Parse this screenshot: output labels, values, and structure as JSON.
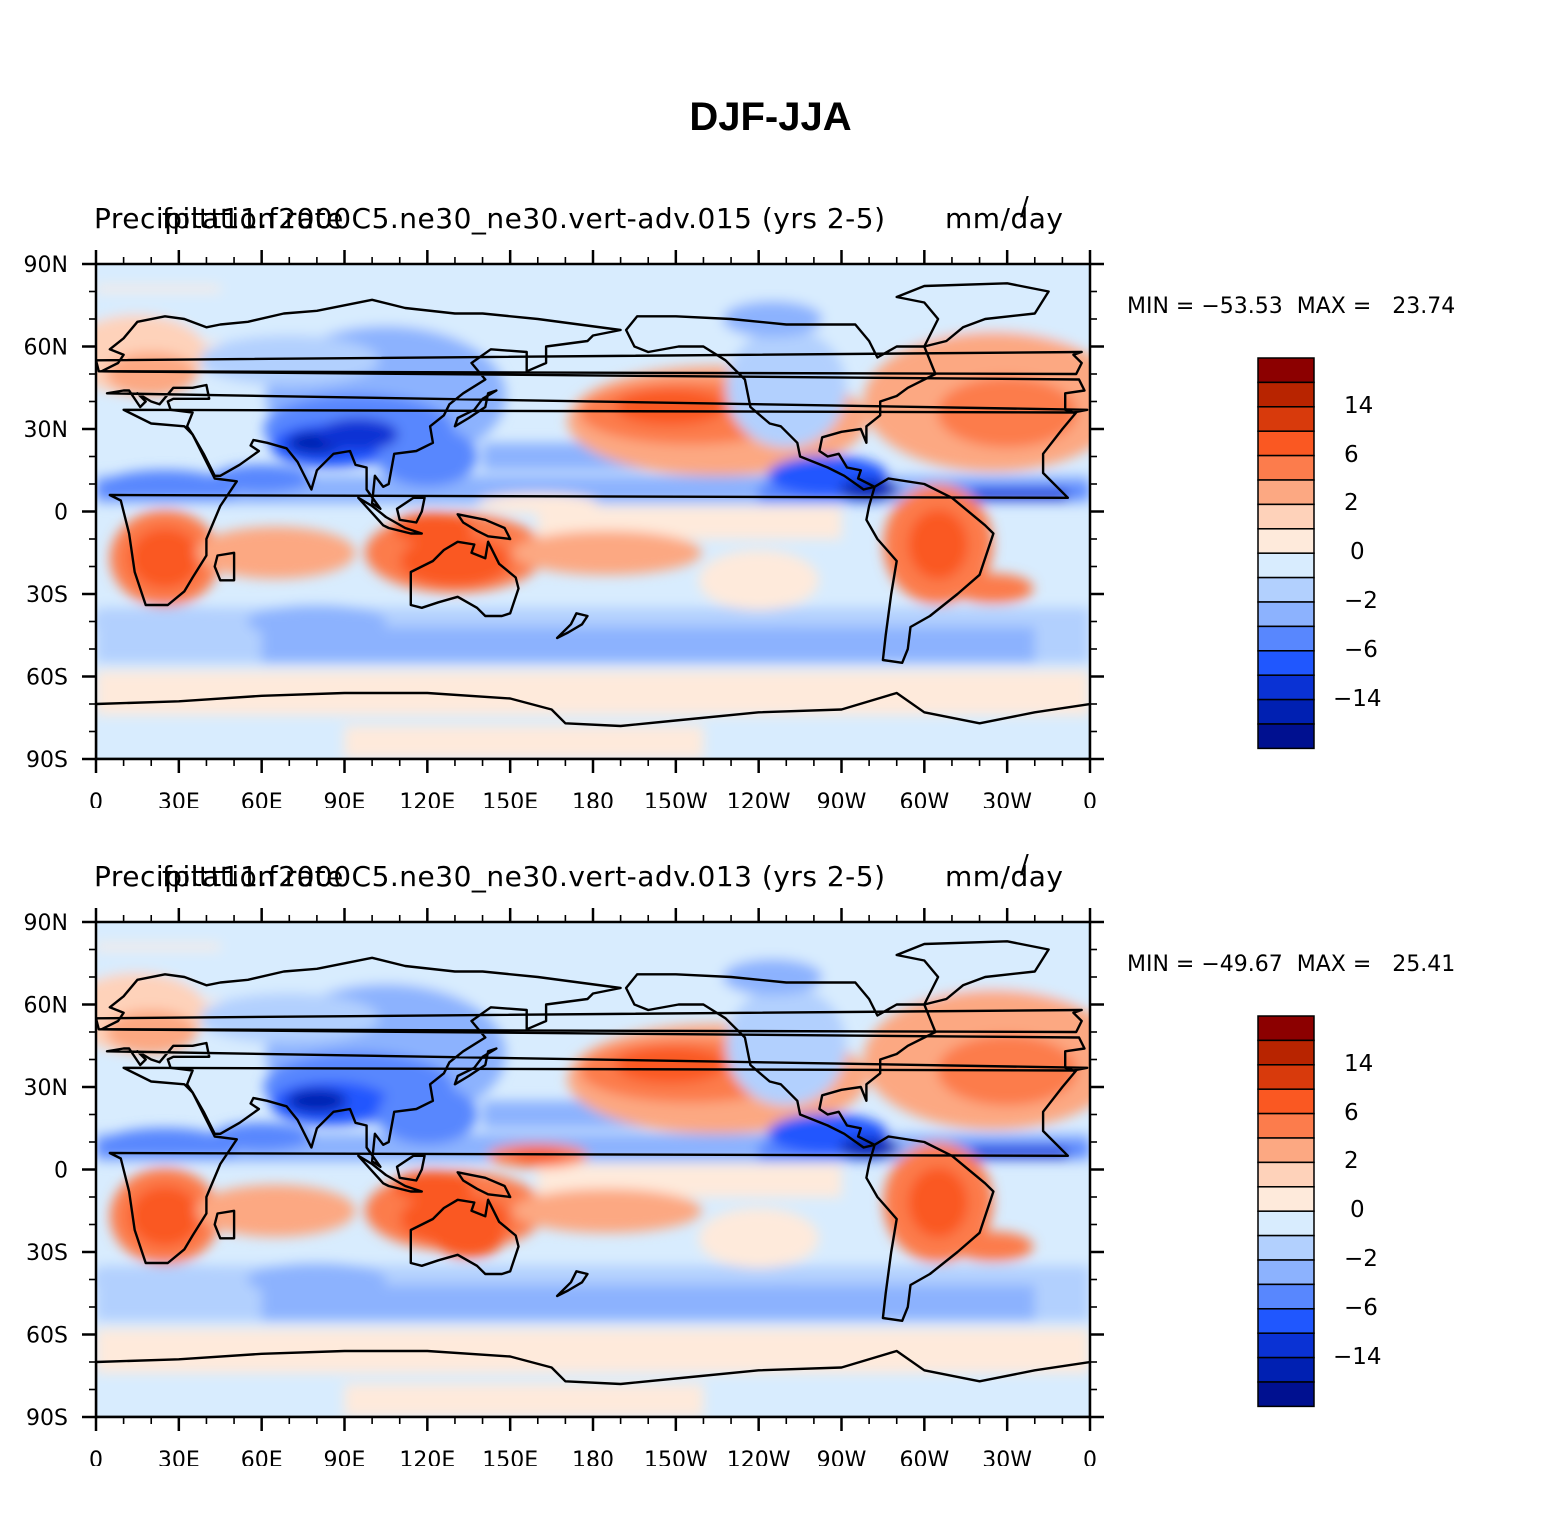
{
  "figure": {
    "title": "DJF-JJA"
  },
  "axes": {
    "lat_labels": [
      "90N",
      "60N",
      "30N",
      "0",
      "30S",
      "60S",
      "90S"
    ],
    "lon_labels": [
      "0",
      "30E",
      "60E",
      "90E",
      "120E",
      "150E",
      "180",
      "150W",
      "120W",
      "90W",
      "60W",
      "30W",
      "0"
    ]
  },
  "colorbar": {
    "colors": [
      "#8c0000",
      "#b82400",
      "#d83a0c",
      "#fa5822",
      "#fc7c4c",
      "#fca882",
      "#fed2ba",
      "#feeadb",
      "#d8ecfe",
      "#b2d0fe",
      "#8cb2fe",
      "#5887fe",
      "#2057fe",
      "#0a32d4",
      "#0020b2",
      "#001090"
    ],
    "labels": [
      "14",
      "6",
      "2",
      "0",
      "−2",
      "−6",
      "−14"
    ]
  },
  "panels": [
    {
      "title_left": "Precipitation rate",
      "title_center": "fpitt11.f2000C5.ne30_ne30.vert-adv.015 (yrs 2-5)",
      "title_right": "mm/day",
      "units_extra": "/",
      "min_label": "MIN = −53.53",
      "max_label": "MAX =   23.74"
    },
    {
      "title_left": "Precipitation rate",
      "title_center": "fpitt11.f2000C5.ne30_ne30.vert-adv.013 (yrs 2-5)",
      "title_right": "mm/day",
      "units_extra": "/",
      "min_label": "MIN = −49.67",
      "max_label": "MAX =   25.41"
    }
  ]
}
